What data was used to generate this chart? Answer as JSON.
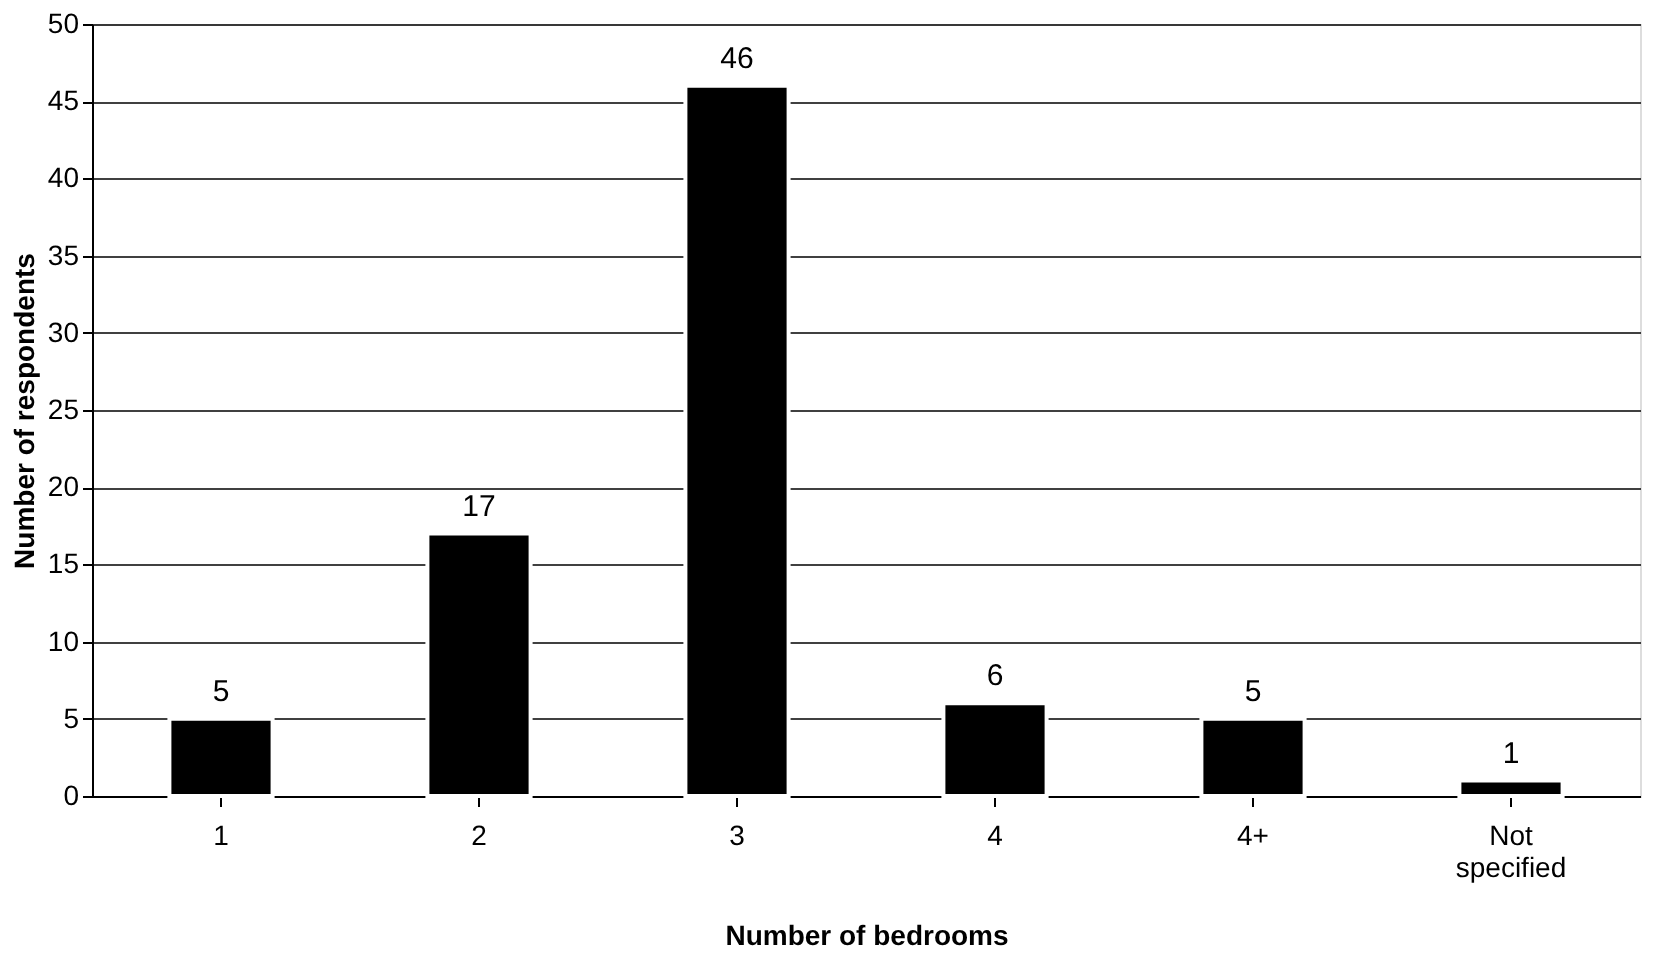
{
  "chart_data": {
    "type": "bar",
    "xlabel": "Number of bedrooms",
    "ylabel": "Number of respondents",
    "categories": [
      "1",
      "2",
      "3",
      "4",
      "4+",
      "Not specified"
    ],
    "series": [
      {
        "color": "#000000",
        "values": [
          5,
          17,
          46,
          6,
          5,
          1
        ]
      }
    ],
    "ylim": [
      0,
      50
    ],
    "yticks": [
      0,
      5,
      10,
      15,
      20,
      25,
      30,
      35,
      40,
      45,
      50
    ],
    "grid": "y",
    "data_labels": true
  }
}
